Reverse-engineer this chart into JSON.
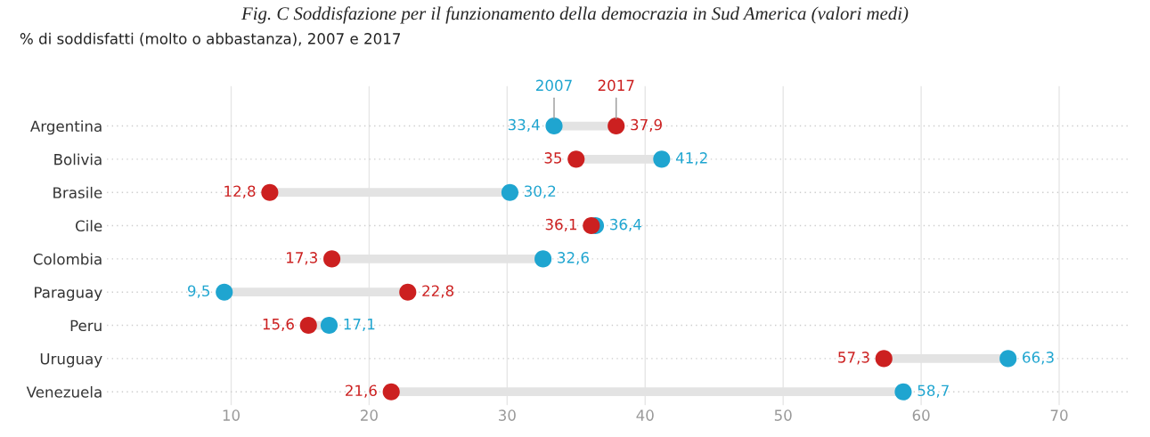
{
  "chart_data": {
    "type": "scatter",
    "title": "Fig. C Soddisfazione per il funzionamento della democrazia in Sud America (valori medi)",
    "subtitle": "% di soddisfatti (molto o abbastanza), 2007 e 2017",
    "categories": [
      "Argentina",
      "Bolivia",
      "Brasile",
      "Cile",
      "Colombia",
      "Paraguay",
      "Peru",
      "Uruguay",
      "Venezuela"
    ],
    "orientation": "horizontal",
    "series": [
      {
        "name": "2007",
        "color": "#1fa5d0",
        "values": [
          33.4,
          41.2,
          30.2,
          36.4,
          32.6,
          9.5,
          17.1,
          66.3,
          58.7
        ],
        "value_labels": [
          "33,4",
          "41,2",
          "30,2",
          "36,4",
          "32,6",
          "9,5",
          "17,1",
          "66,3",
          "58,7"
        ]
      },
      {
        "name": "2017",
        "color": "#cc2020",
        "values": [
          37.9,
          35,
          12.8,
          36.1,
          17.3,
          22.8,
          15.6,
          57.3,
          21.6
        ],
        "value_labels": [
          "37,9",
          "35",
          "12,8",
          "36,1",
          "17,3",
          "22,8",
          "15,6",
          "57,3",
          "21,6"
        ]
      }
    ],
    "xlim": [
      1,
      75
    ],
    "xticks": [
      10,
      20,
      30,
      40,
      50,
      60,
      70
    ],
    "grid": true,
    "legend": false,
    "marker": "circle"
  }
}
